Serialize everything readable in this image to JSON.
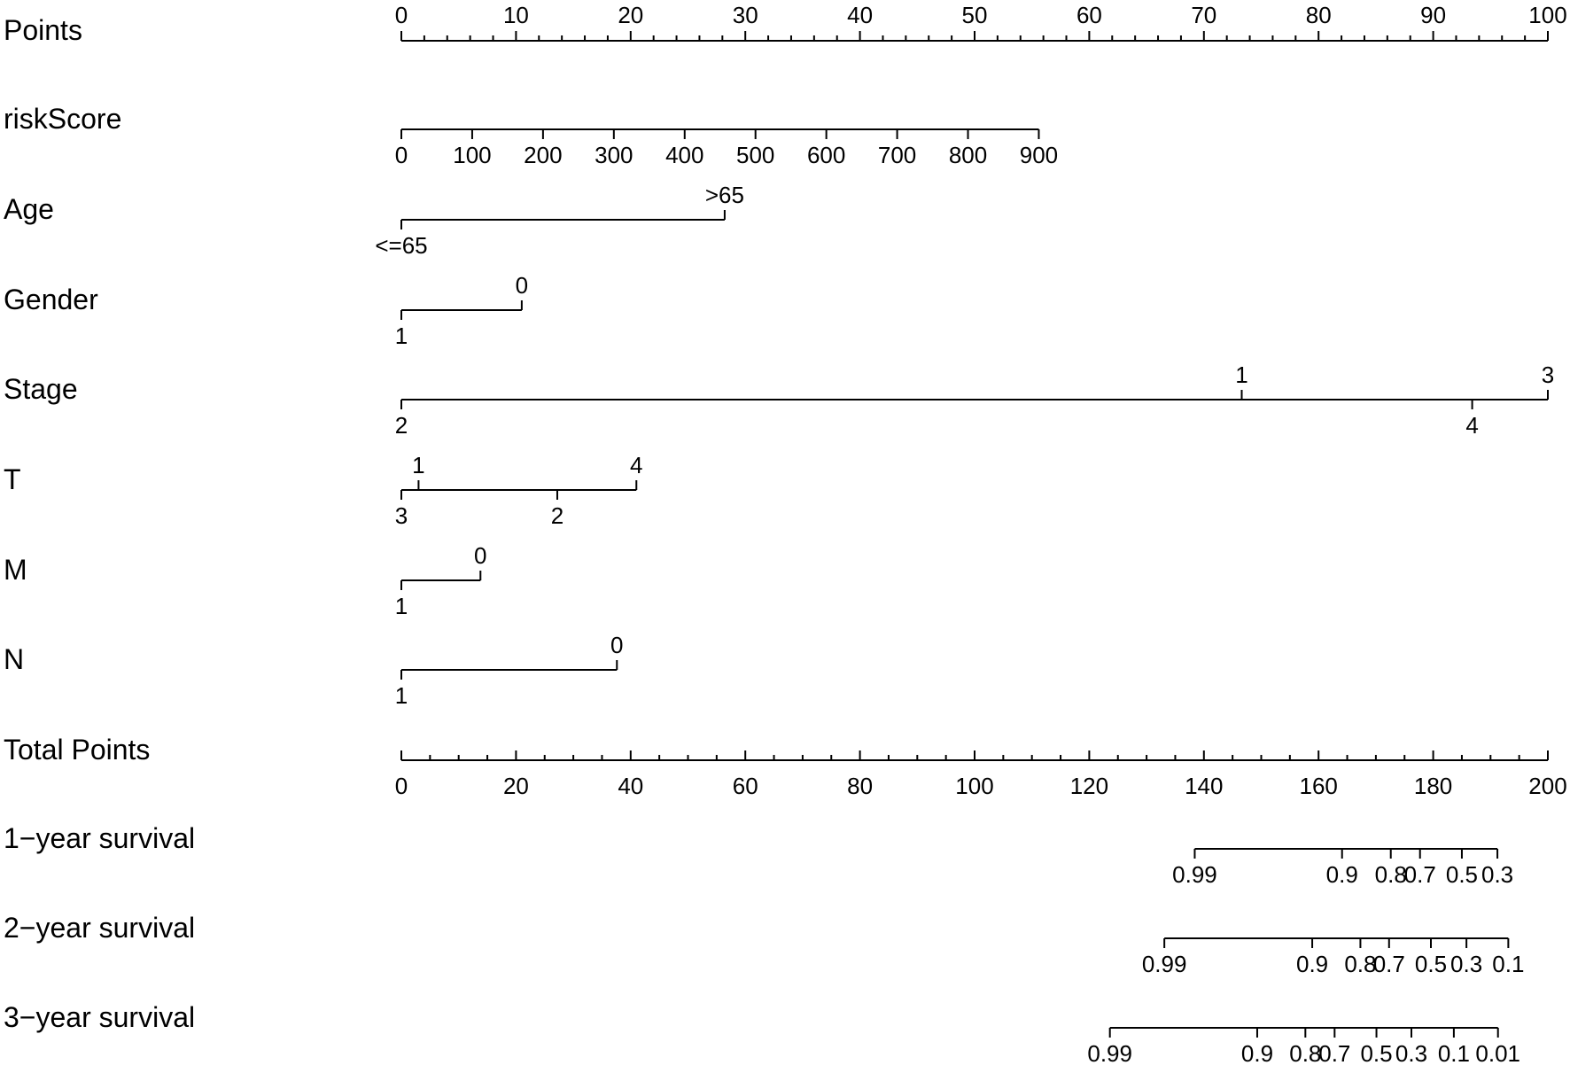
{
  "chart_data": {
    "type": "nomogram",
    "points_scale": {
      "label": "Points",
      "range": [
        0,
        100
      ],
      "labels": [
        "0",
        "10",
        "20",
        "30",
        "40",
        "50",
        "60",
        "70",
        "80",
        "90",
        "100"
      ]
    },
    "variables": [
      {
        "name": "riskScore",
        "points_range": [
          0,
          55.6
        ],
        "values": [
          "0",
          "100",
          "200",
          "300",
          "400",
          "500",
          "600",
          "700",
          "800",
          "900"
        ]
      },
      {
        "name": "Age",
        "levels": [
          {
            "label": "<=65",
            "points": 0
          },
          {
            "label": ">65",
            "points": 28.2
          }
        ]
      },
      {
        "name": "Gender",
        "levels": [
          {
            "label": "1",
            "points": 0
          },
          {
            "label": "0",
            "points": 10.5
          }
        ]
      },
      {
        "name": "Stage",
        "levels": [
          {
            "label": "2",
            "points": 0
          },
          {
            "label": "1",
            "points": 73.3
          },
          {
            "label": "4",
            "points": 93.4
          },
          {
            "label": "3",
            "points": 100
          }
        ]
      },
      {
        "name": "T",
        "levels": [
          {
            "label": "3",
            "points": 0
          },
          {
            "label": "1",
            "points": 1.5
          },
          {
            "label": "2",
            "points": 13.6
          },
          {
            "label": "4",
            "points": 20.5
          }
        ]
      },
      {
        "name": "M",
        "levels": [
          {
            "label": "1",
            "points": 0
          },
          {
            "label": "0",
            "points": 6.9
          }
        ]
      },
      {
        "name": "N",
        "levels": [
          {
            "label": "1",
            "points": 0
          },
          {
            "label": "0",
            "points": 18.8
          }
        ]
      }
    ],
    "total_points_scale": {
      "label": "Total Points",
      "range": [
        0,
        200
      ],
      "labels": [
        "0",
        "20",
        "40",
        "60",
        "80",
        "100",
        "120",
        "140",
        "160",
        "180",
        "200"
      ]
    },
    "survival_scales": [
      {
        "name": "1−year survival",
        "range_total_points": [
          138.4,
          191.2
        ],
        "ticks": [
          {
            "label": "0.99",
            "total_points": 138.4
          },
          {
            "label": "0.9",
            "total_points": 164.1
          },
          {
            "label": "0.8",
            "total_points": 172.6
          },
          {
            "label": "0.7",
            "total_points": 177.7
          },
          {
            "label": "0.5",
            "total_points": 185.0
          },
          {
            "label": "0.3",
            "total_points": 191.2
          }
        ]
      },
      {
        "name": "2−year survival",
        "range_total_points": [
          133.1,
          193.1
        ],
        "ticks": [
          {
            "label": "0.99",
            "total_points": 133.1
          },
          {
            "label": "0.9",
            "total_points": 158.9
          },
          {
            "label": "0.8",
            "total_points": 167.3
          },
          {
            "label": "0.7",
            "total_points": 172.3
          },
          {
            "label": "0.5",
            "total_points": 179.6
          },
          {
            "label": "0.3",
            "total_points": 185.8
          },
          {
            "label": "0.1",
            "total_points": 193.1
          }
        ]
      },
      {
        "name": "3−year survival",
        "range_total_points": [
          123.6,
          191.3
        ],
        "ticks": [
          {
            "label": "0.99",
            "total_points": 123.6
          },
          {
            "label": "0.9",
            "total_points": 149.3
          },
          {
            "label": "0.8",
            "total_points": 157.7
          },
          {
            "label": "0.7",
            "total_points": 162.8
          },
          {
            "label": "0.5",
            "total_points": 170.1
          },
          {
            "label": "0.3",
            "total_points": 176.2
          },
          {
            "label": "0.1",
            "total_points": 183.6
          },
          {
            "label": "0.01",
            "total_points": 191.3
          }
        ]
      }
    ]
  }
}
